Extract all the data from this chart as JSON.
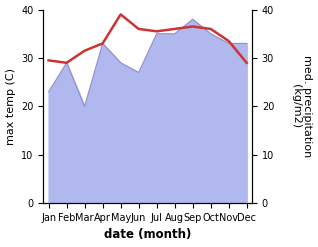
{
  "months": [
    "Jan",
    "Feb",
    "Mar",
    "Apr",
    "May",
    "Jun",
    "Jul",
    "Aug",
    "Sep",
    "Oct",
    "Nov",
    "Dec"
  ],
  "month_positions": [
    1,
    2,
    3,
    4,
    5,
    6,
    7,
    8,
    9,
    10,
    11,
    12
  ],
  "temp_data": [
    29.5,
    29.0,
    31.5,
    33.0,
    39.0,
    36.0,
    35.5,
    36.0,
    36.5,
    36.0,
    33.5,
    29.0
  ],
  "precip_data": [
    23,
    29,
    20,
    33,
    29,
    27,
    35,
    35,
    38,
    35,
    33,
    33
  ],
  "temp_color": "#cc3333",
  "precip_fill_color": "#b0b8ee",
  "precip_line_color": "#9090cc",
  "temp_ylim": [
    0,
    40
  ],
  "precip_ylim": [
    0,
    40
  ],
  "temp_yticks": [
    0,
    10,
    20,
    30,
    40
  ],
  "precip_yticks": [
    0,
    10,
    20,
    30,
    40
  ],
  "ylabel_left": "max temp (C)",
  "ylabel_right": "med. precipitation\n(kg/m2)",
  "xlabel": "date (month)",
  "background_color": "#ffffff",
  "tick_fontsize": 7.0,
  "label_fontsize": 8.0,
  "xlabel_fontsize": 8.5,
  "xlabel_fontweight": "bold",
  "line_width": 1.8,
  "fig_width": 3.18,
  "fig_height": 2.47,
  "dpi": 100
}
